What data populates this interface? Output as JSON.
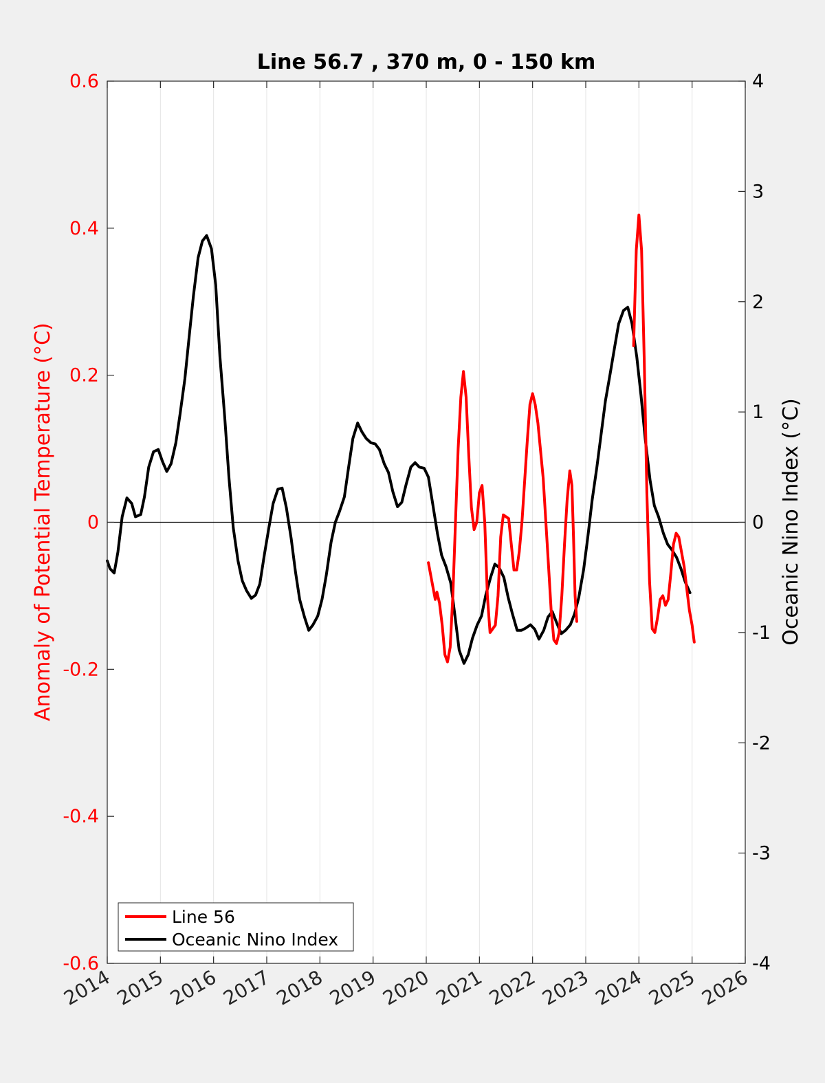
{
  "chart_data": {
    "type": "line",
    "title": "Line 56.7 , 370 m, 0 - 150 km",
    "xlim": [
      2014,
      2026
    ],
    "x_ticks": [
      2014,
      2015,
      2016,
      2017,
      2018,
      2019,
      2020,
      2021,
      2022,
      2023,
      2024,
      2025,
      2026
    ],
    "x_tick_labels": [
      "2014",
      "2015",
      "2016",
      "2017",
      "2018",
      "2019",
      "2020",
      "2021",
      "2022",
      "2023",
      "2024",
      "2025",
      "2026"
    ],
    "grid": "vertical",
    "legend_position": "bottom-left",
    "left_axis": {
      "label": "Anomaly of Potential Temperature (°C)",
      "ylim": [
        -0.6,
        0.6
      ],
      "ticks": [
        -0.6,
        -0.4,
        -0.2,
        0,
        0.2,
        0.4,
        0.6
      ],
      "tick_labels": [
        "-0.6",
        "-0.4",
        "-0.2",
        "0",
        "0.2",
        "0.4",
        "0.6"
      ],
      "color": "#ff0000"
    },
    "right_axis": {
      "label": "Oceanic Nino Index (°C)",
      "ylim": [
        -4,
        4
      ],
      "ticks": [
        -4,
        -3,
        -2,
        -1,
        0,
        1,
        2,
        3,
        4
      ],
      "tick_labels": [
        "-4",
        "-3",
        "-2",
        "-1",
        "0",
        "1",
        "2",
        "3",
        "4"
      ],
      "color": "#000000"
    },
    "series": [
      {
        "name": "Line 56",
        "axis": "left",
        "color": "#ff0000",
        "points": [
          [
            2020.04,
            -0.055
          ],
          [
            2020.13,
            -0.09
          ],
          [
            2020.17,
            -0.105
          ],
          [
            2020.2,
            -0.095
          ],
          [
            2020.25,
            -0.11
          ],
          [
            2020.3,
            -0.14
          ],
          [
            2020.35,
            -0.18
          ],
          [
            2020.4,
            -0.19
          ],
          [
            2020.45,
            -0.17
          ],
          [
            2020.5,
            -0.1
          ],
          [
            2020.55,
            0.0
          ],
          [
            2020.6,
            0.1
          ],
          [
            2020.65,
            0.17
          ],
          [
            2020.7,
            0.205
          ],
          [
            2020.75,
            0.17
          ],
          [
            2020.8,
            0.09
          ],
          [
            2020.85,
            0.02
          ],
          [
            2020.9,
            -0.01
          ],
          [
            2020.95,
            0.0
          ],
          [
            2021.0,
            0.04
          ],
          [
            2021.05,
            0.05
          ],
          [
            2021.1,
            0.0
          ],
          [
            2021.15,
            -0.1
          ],
          [
            2021.2,
            -0.15
          ],
          [
            2021.3,
            -0.14
          ],
          [
            2021.35,
            -0.1
          ],
          [
            2021.4,
            -0.02
          ],
          [
            2021.45,
            0.01
          ],
          [
            2021.55,
            0.005
          ],
          [
            2021.6,
            -0.03
          ],
          [
            2021.65,
            -0.065
          ],
          [
            2021.7,
            -0.065
          ],
          [
            2021.75,
            -0.04
          ],
          [
            2021.8,
            0.0
          ],
          [
            2021.9,
            0.11
          ],
          [
            2021.95,
            0.16
          ],
          [
            2022.0,
            0.175
          ],
          [
            2022.05,
            0.16
          ],
          [
            2022.1,
            0.135
          ],
          [
            2022.2,
            0.06
          ],
          [
            2022.25,
            0.0
          ],
          [
            2022.3,
            -0.06
          ],
          [
            2022.35,
            -0.12
          ],
          [
            2022.4,
            -0.16
          ],
          [
            2022.45,
            -0.165
          ],
          [
            2022.5,
            -0.15
          ],
          [
            2022.55,
            -0.1
          ],
          [
            2022.6,
            -0.03
          ],
          [
            2022.65,
            0.03
          ],
          [
            2022.7,
            0.07
          ],
          [
            2022.74,
            0.05
          ],
          [
            2022.77,
            -0.02
          ],
          [
            2022.8,
            -0.1
          ],
          [
            2022.83,
            -0.135
          ],
          [
            2023.9,
            0.24
          ],
          [
            2023.95,
            0.37
          ],
          [
            2024.0,
            0.418
          ],
          [
            2024.05,
            0.37
          ],
          [
            2024.1,
            0.22
          ],
          [
            2024.15,
            0.04
          ],
          [
            2024.2,
            -0.08
          ],
          [
            2024.25,
            -0.145
          ],
          [
            2024.3,
            -0.15
          ],
          [
            2024.35,
            -0.13
          ],
          [
            2024.4,
            -0.105
          ],
          [
            2024.45,
            -0.1
          ],
          [
            2024.5,
            -0.113
          ],
          [
            2024.55,
            -0.105
          ],
          [
            2024.6,
            -0.07
          ],
          [
            2024.65,
            -0.03
          ],
          [
            2024.7,
            -0.015
          ],
          [
            2024.75,
            -0.02
          ],
          [
            2024.8,
            -0.04
          ],
          [
            2024.85,
            -0.06
          ],
          [
            2024.9,
            -0.09
          ],
          [
            2024.95,
            -0.12
          ],
          [
            2025.0,
            -0.14
          ],
          [
            2025.04,
            -0.163
          ]
        ]
      },
      {
        "name": "Oceanic Nino Index",
        "axis": "right",
        "color": "#000000",
        "points": [
          [
            2014.0,
            -0.35
          ],
          [
            2014.05,
            -0.42
          ],
          [
            2014.13,
            -0.46
          ],
          [
            2014.2,
            -0.27
          ],
          [
            2014.28,
            0.05
          ],
          [
            2014.37,
            0.22
          ],
          [
            2014.46,
            0.17
          ],
          [
            2014.53,
            0.05
          ],
          [
            2014.63,
            0.07
          ],
          [
            2014.7,
            0.23
          ],
          [
            2014.78,
            0.5
          ],
          [
            2014.87,
            0.64
          ],
          [
            2014.96,
            0.66
          ],
          [
            2015.04,
            0.55
          ],
          [
            2015.12,
            0.46
          ],
          [
            2015.2,
            0.53
          ],
          [
            2015.29,
            0.72
          ],
          [
            2015.37,
            0.98
          ],
          [
            2015.46,
            1.3
          ],
          [
            2015.54,
            1.68
          ],
          [
            2015.62,
            2.05
          ],
          [
            2015.71,
            2.4
          ],
          [
            2015.79,
            2.55
          ],
          [
            2015.87,
            2.6
          ],
          [
            2015.96,
            2.48
          ],
          [
            2016.04,
            2.15
          ],
          [
            2016.12,
            1.5
          ],
          [
            2016.21,
            0.95
          ],
          [
            2016.29,
            0.4
          ],
          [
            2016.37,
            -0.05
          ],
          [
            2016.46,
            -0.35
          ],
          [
            2016.54,
            -0.53
          ],
          [
            2016.62,
            -0.62
          ],
          [
            2016.71,
            -0.69
          ],
          [
            2016.79,
            -0.66
          ],
          [
            2016.87,
            -0.56
          ],
          [
            2016.96,
            -0.28
          ],
          [
            2017.04,
            -0.05
          ],
          [
            2017.12,
            0.17
          ],
          [
            2017.21,
            0.3
          ],
          [
            2017.29,
            0.31
          ],
          [
            2017.37,
            0.13
          ],
          [
            2017.46,
            -0.15
          ],
          [
            2017.54,
            -0.45
          ],
          [
            2017.62,
            -0.7
          ],
          [
            2017.71,
            -0.86
          ],
          [
            2017.79,
            -0.98
          ],
          [
            2017.87,
            -0.93
          ],
          [
            2017.96,
            -0.85
          ],
          [
            2018.04,
            -0.7
          ],
          [
            2018.12,
            -0.48
          ],
          [
            2018.21,
            -0.18
          ],
          [
            2018.29,
            0.0
          ],
          [
            2018.37,
            0.1
          ],
          [
            2018.46,
            0.23
          ],
          [
            2018.54,
            0.5
          ],
          [
            2018.62,
            0.76
          ],
          [
            2018.71,
            0.9
          ],
          [
            2018.79,
            0.82
          ],
          [
            2018.87,
            0.76
          ],
          [
            2018.96,
            0.72
          ],
          [
            2019.04,
            0.71
          ],
          [
            2019.12,
            0.66
          ],
          [
            2019.21,
            0.53
          ],
          [
            2019.29,
            0.45
          ],
          [
            2019.37,
            0.28
          ],
          [
            2019.46,
            0.14
          ],
          [
            2019.54,
            0.18
          ],
          [
            2019.62,
            0.34
          ],
          [
            2019.71,
            0.5
          ],
          [
            2019.79,
            0.54
          ],
          [
            2019.87,
            0.5
          ],
          [
            2019.96,
            0.49
          ],
          [
            2020.04,
            0.41
          ],
          [
            2020.12,
            0.17
          ],
          [
            2020.21,
            -0.1
          ],
          [
            2020.29,
            -0.3
          ],
          [
            2020.37,
            -0.4
          ],
          [
            2020.46,
            -0.55
          ],
          [
            2020.54,
            -0.85
          ],
          [
            2020.62,
            -1.16
          ],
          [
            2020.71,
            -1.28
          ],
          [
            2020.79,
            -1.2
          ],
          [
            2020.87,
            -1.05
          ],
          [
            2020.96,
            -0.93
          ],
          [
            2021.04,
            -0.85
          ],
          [
            2021.12,
            -0.66
          ],
          [
            2021.21,
            -0.5
          ],
          [
            2021.29,
            -0.38
          ],
          [
            2021.37,
            -0.41
          ],
          [
            2021.46,
            -0.5
          ],
          [
            2021.54,
            -0.68
          ],
          [
            2021.62,
            -0.83
          ],
          [
            2021.71,
            -0.98
          ],
          [
            2021.79,
            -0.98
          ],
          [
            2021.87,
            -0.96
          ],
          [
            2021.96,
            -0.93
          ],
          [
            2022.04,
            -0.97
          ],
          [
            2022.12,
            -1.06
          ],
          [
            2022.21,
            -0.98
          ],
          [
            2022.29,
            -0.86
          ],
          [
            2022.37,
            -0.81
          ],
          [
            2022.46,
            -0.92
          ],
          [
            2022.54,
            -1.01
          ],
          [
            2022.62,
            -0.98
          ],
          [
            2022.71,
            -0.93
          ],
          [
            2022.79,
            -0.83
          ],
          [
            2022.87,
            -0.68
          ],
          [
            2022.96,
            -0.43
          ],
          [
            2023.04,
            -0.13
          ],
          [
            2023.12,
            0.2
          ],
          [
            2023.21,
            0.5
          ],
          [
            2023.29,
            0.8
          ],
          [
            2023.37,
            1.1
          ],
          [
            2023.46,
            1.35
          ],
          [
            2023.54,
            1.58
          ],
          [
            2023.62,
            1.8
          ],
          [
            2023.71,
            1.92
          ],
          [
            2023.79,
            1.95
          ],
          [
            2023.87,
            1.8
          ],
          [
            2023.96,
            1.5
          ],
          [
            2024.04,
            1.15
          ],
          [
            2024.12,
            0.75
          ],
          [
            2024.21,
            0.38
          ],
          [
            2024.29,
            0.15
          ],
          [
            2024.37,
            0.05
          ],
          [
            2024.46,
            -0.1
          ],
          [
            2024.54,
            -0.2
          ],
          [
            2024.62,
            -0.25
          ],
          [
            2024.71,
            -0.32
          ],
          [
            2024.79,
            -0.42
          ],
          [
            2024.87,
            -0.54
          ],
          [
            2024.96,
            -0.64
          ]
        ]
      }
    ]
  }
}
